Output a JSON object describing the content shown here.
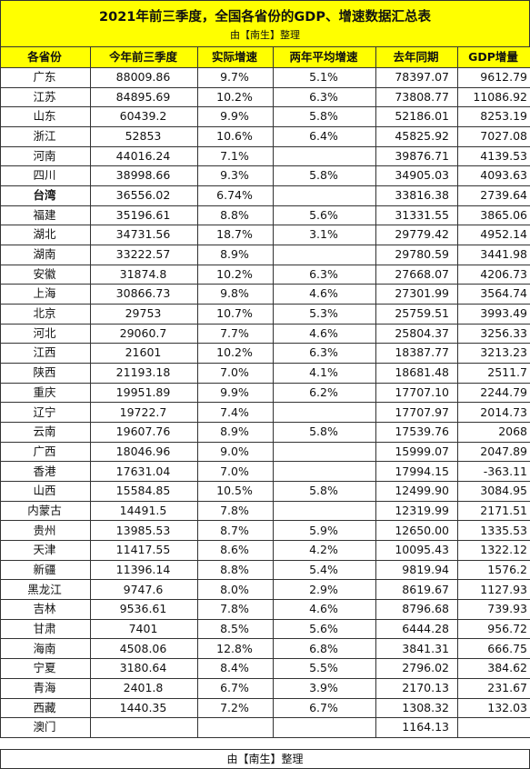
{
  "title": "2021年前三季度，全国各省份的GDP、增速数据汇总表",
  "subtitle": "由【南生】整理",
  "columns": [
    "各省份",
    "今年前三季度",
    "实际增速",
    "两年平均增速",
    "去年同期",
    "GDP增量"
  ],
  "rows": [
    [
      "广东",
      "88009.86",
      "9.7%",
      "5.1%",
      "78397.07",
      "9612.79"
    ],
    [
      "江苏",
      "84895.69",
      "10.2%",
      "6.3%",
      "73808.77",
      "11086.92"
    ],
    [
      "山东",
      "60439.2",
      "9.9%",
      "5.8%",
      "52186.01",
      "8253.19"
    ],
    [
      "浙江",
      "52853",
      "10.6%",
      "6.4%",
      "45825.92",
      "7027.08"
    ],
    [
      "河南",
      "44016.24",
      "7.1%",
      "",
      "39876.71",
      "4139.53"
    ],
    [
      "四川",
      "38998.66",
      "9.3%",
      "5.8%",
      "34905.03",
      "4093.63"
    ],
    [
      "台湾",
      "36556.02",
      "6.74%",
      "",
      "33816.38",
      "2739.64"
    ],
    [
      "福建",
      "35196.61",
      "8.8%",
      "5.6%",
      "31331.55",
      "3865.06"
    ],
    [
      "湖北",
      "34731.56",
      "18.7%",
      "3.1%",
      "29779.42",
      "4952.14"
    ],
    [
      "湖南",
      "33222.57",
      "8.9%",
      "",
      "29780.59",
      "3441.98"
    ],
    [
      "安徽",
      "31874.8",
      "10.2%",
      "6.3%",
      "27668.07",
      "4206.73"
    ],
    [
      "上海",
      "30866.73",
      "9.8%",
      "4.6%",
      "27301.99",
      "3564.74"
    ],
    [
      "北京",
      "29753",
      "10.7%",
      "5.3%",
      "25759.51",
      "3993.49"
    ],
    [
      "河北",
      "29060.7",
      "7.7%",
      "4.6%",
      "25804.37",
      "3256.33"
    ],
    [
      "江西",
      "21601",
      "10.2%",
      "6.3%",
      "18387.77",
      "3213.23"
    ],
    [
      "陕西",
      "21193.18",
      "7.0%",
      "4.1%",
      "18681.48",
      "2511.7"
    ],
    [
      "重庆",
      "19951.89",
      "9.9%",
      "6.2%",
      "17707.10",
      "2244.79"
    ],
    [
      "辽宁",
      "19722.7",
      "7.4%",
      "",
      "17707.97",
      "2014.73"
    ],
    [
      "云南",
      "19607.76",
      "8.9%",
      "5.8%",
      "17539.76",
      "2068"
    ],
    [
      "广西",
      "18046.96",
      "9.0%",
      "",
      "15999.07",
      "2047.89"
    ],
    [
      "香港",
      "17631.04",
      "7.0%",
      "",
      "17994.15",
      "-363.11"
    ],
    [
      "山西",
      "15584.85",
      "10.5%",
      "5.8%",
      "12499.90",
      "3084.95"
    ],
    [
      "内蒙古",
      "14491.5",
      "7.8%",
      "",
      "12319.99",
      "2171.51"
    ],
    [
      "贵州",
      "13985.53",
      "8.7%",
      "5.9%",
      "12650.00",
      "1335.53"
    ],
    [
      "天津",
      "11417.55",
      "8.6%",
      "4.2%",
      "10095.43",
      "1322.12"
    ],
    [
      "新疆",
      "11396.14",
      "8.8%",
      "5.4%",
      "9819.94",
      "1576.2"
    ],
    [
      "黑龙江",
      "9747.6",
      "8.0%",
      "2.9%",
      "8619.67",
      "1127.93"
    ],
    [
      "吉林",
      "9536.61",
      "7.8%",
      "4.6%",
      "8796.68",
      "739.93"
    ],
    [
      "甘肃",
      "7401",
      "8.5%",
      "5.6%",
      "6444.28",
      "956.72"
    ],
    [
      "海南",
      "4508.06",
      "12.8%",
      "6.8%",
      "3841.31",
      "666.75"
    ],
    [
      "宁夏",
      "3180.64",
      "8.4%",
      "5.5%",
      "2796.02",
      "384.62"
    ],
    [
      "青海",
      "2401.8",
      "6.7%",
      "3.9%",
      "2170.13",
      "231.67"
    ],
    [
      "西藏",
      "1440.35",
      "7.2%",
      "6.7%",
      "1308.32",
      "132.03"
    ],
    [
      "澳门",
      "",
      "",
      "",
      "1164.13",
      ""
    ]
  ],
  "highlight_row": "台湾",
  "footer": "由【南生】整理",
  "colors": {
    "header_bg": "#ffff00",
    "border": "#333333"
  }
}
